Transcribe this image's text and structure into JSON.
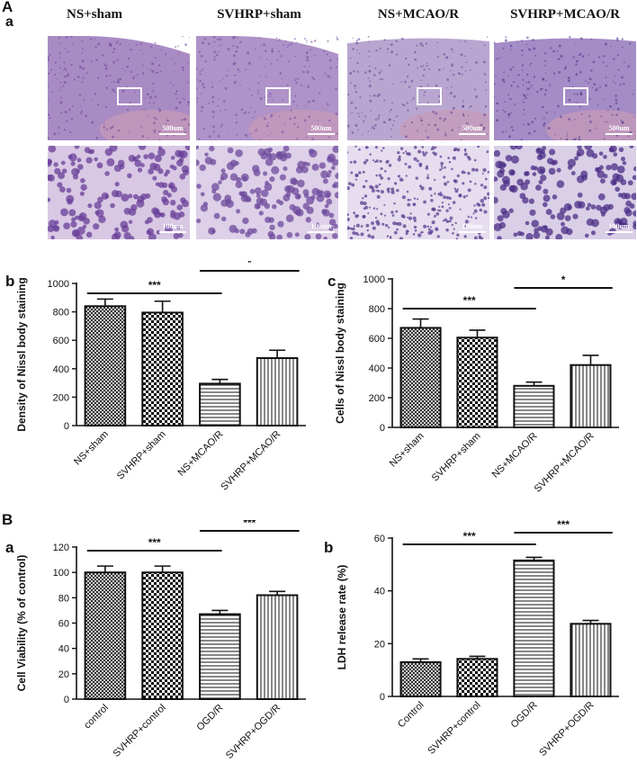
{
  "section_A": {
    "letter": "A",
    "subpanel_a": "a",
    "columns": [
      "NS+sham",
      "SVHRP+sham",
      "NS+MCAO/R",
      "SVHRP+MCAO/R"
    ],
    "scale_top": "500um",
    "scale_bottom": "100um"
  },
  "section_B": {
    "letter": "B"
  },
  "chart_data": [
    {
      "id": "Ab",
      "panel": "b",
      "type": "bar",
      "categories": [
        "NS+sham",
        "SVHRP+sham",
        "NS+MCAO/R",
        "SVHRP+MCAO/R"
      ],
      "values": [
        840,
        795,
        295,
        475
      ],
      "errors": [
        50,
        80,
        30,
        55
      ],
      "ylabel": "Density of Nissl body staining",
      "ylim": [
        0,
        1000
      ],
      "yticks": [
        0,
        200,
        400,
        600,
        800,
        1000
      ],
      "patterns": [
        "crosshatch",
        "checker",
        "hlines",
        "vlines"
      ],
      "significance": [
        {
          "from": 0,
          "to": 2,
          "label": "***"
        },
        {
          "from": 2,
          "to": 3,
          "label": "*"
        }
      ]
    },
    {
      "id": "Ac",
      "panel": "c",
      "type": "bar",
      "categories": [
        "NS+sham",
        "SVHRP+sham",
        "NS+MCAO/R",
        "SVHRP+MCAO/R"
      ],
      "values": [
        670,
        605,
        280,
        420
      ],
      "errors": [
        60,
        50,
        25,
        65
      ],
      "ylabel": "Cells of Nissl body staining",
      "ylim": [
        0,
        1000
      ],
      "yticks": [
        0,
        200,
        400,
        600,
        800,
        1000
      ],
      "patterns": [
        "crosshatch",
        "checker",
        "hlines",
        "vlines"
      ],
      "significance": [
        {
          "from": 0,
          "to": 2,
          "label": "***"
        },
        {
          "from": 2,
          "to": 3,
          "label": "*"
        }
      ]
    },
    {
      "id": "Ba",
      "panel": "a",
      "type": "bar",
      "categories": [
        "control",
        "SVHRP+control",
        "OGD/R",
        "SVHRP+OGD/R"
      ],
      "values": [
        100,
        100,
        67,
        82
      ],
      "errors": [
        5,
        5,
        3,
        3
      ],
      "ylabel": "Cell Viability (% of control)",
      "ylim": [
        0,
        120
      ],
      "yticks": [
        0,
        20,
        40,
        60,
        80,
        100,
        120
      ],
      "patterns": [
        "crosshatch",
        "checker",
        "hlines",
        "vlines"
      ],
      "significance": [
        {
          "from": 0,
          "to": 2,
          "label": "***"
        },
        {
          "from": 2,
          "to": 3,
          "label": "***"
        }
      ]
    },
    {
      "id": "Bb",
      "panel": "b",
      "type": "bar",
      "categories": [
        "Control",
        "SVHRP+control",
        "OGD/R",
        "SVHRP+OGD/R"
      ],
      "values": [
        13,
        14.2,
        51.5,
        27.5
      ],
      "errors": [
        1.2,
        1.0,
        1.2,
        1.3
      ],
      "ylabel": "LDH release rate (%)",
      "ylim": [
        0,
        60
      ],
      "yticks": [
        0,
        20,
        40,
        60
      ],
      "patterns": [
        "crosshatch",
        "checker",
        "hlines",
        "vlines"
      ],
      "significance": [
        {
          "from": 0,
          "to": 2,
          "label": "***"
        },
        {
          "from": 2,
          "to": 3,
          "label": "***"
        }
      ]
    }
  ]
}
